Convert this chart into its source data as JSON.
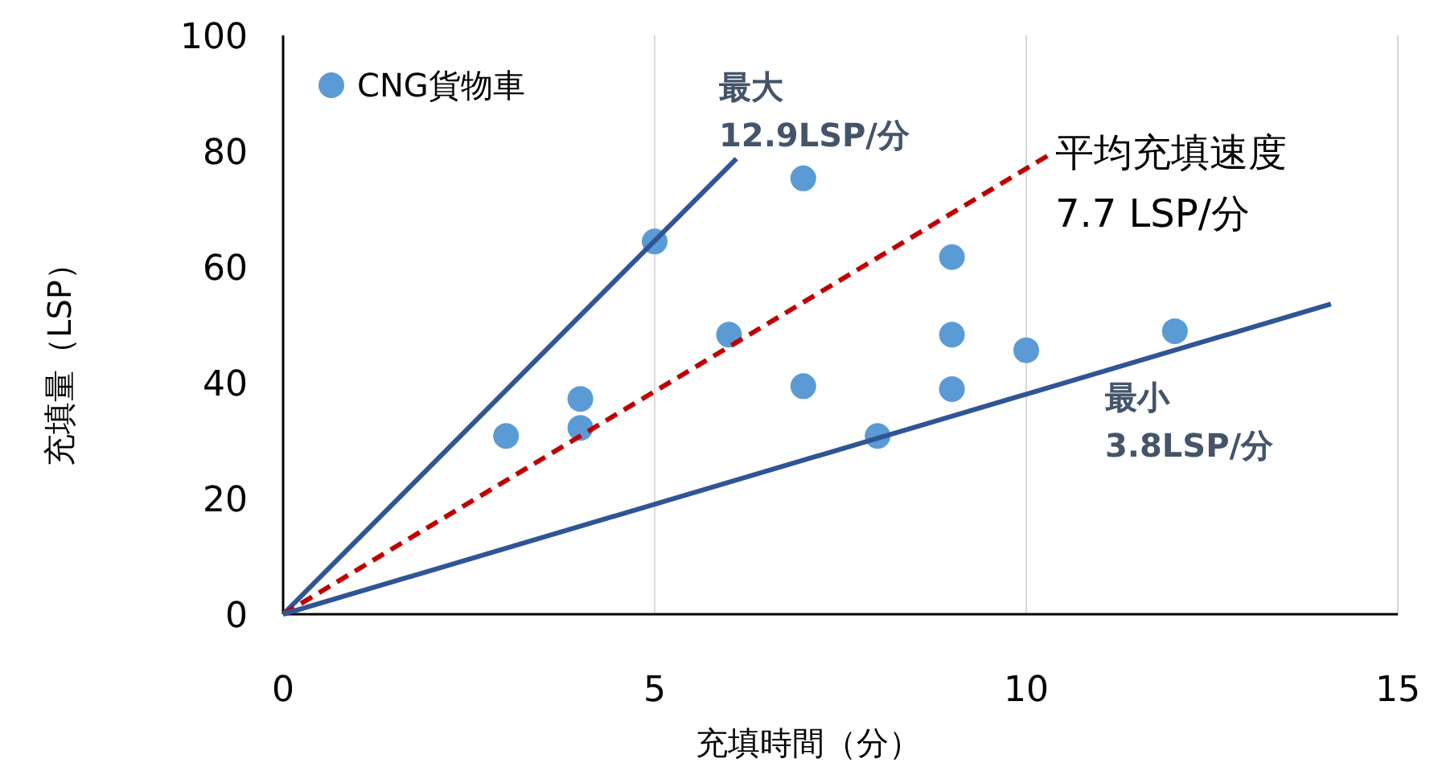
{
  "chart_data": {
    "type": "scatter",
    "xlabel": "充填時間（分）",
    "ylabel": "充填量（LSP）",
    "xlim": [
      0,
      15
    ],
    "ylim": [
      0,
      100
    ],
    "xticks": [
      0,
      5,
      10,
      15
    ],
    "yticks": [
      0,
      20,
      40,
      60,
      80,
      100
    ],
    "grid": "x",
    "legend": "top left",
    "series": [
      {
        "name": "CNG貨物車",
        "marker": "circle",
        "color": "#5b9bd5",
        "x": [
          3,
          4,
          4,
          5,
          6,
          7,
          7,
          8,
          9,
          9,
          9,
          10,
          12
        ],
        "values": [
          30.8,
          37.2,
          32.2,
          64.4,
          48.3,
          75.3,
          39.4,
          30.8,
          61.7,
          48.3,
          38.9,
          45.6,
          48.9
        ]
      },
      {
        "type": "line",
        "color": "#2f5597",
        "line_style": "solid",
        "x": [
          0,
          6.1
        ],
        "values": [
          0,
          78.7
        ]
      },
      {
        "type": "line",
        "color": "#c00000",
        "line_style": "dashed",
        "x": [
          0,
          10.3
        ],
        "values": [
          0,
          79.3
        ]
      },
      {
        "type": "line",
        "color": "#2f5597",
        "line_style": "solid",
        "x": [
          0,
          14.1
        ],
        "values": [
          0,
          53.6
        ]
      }
    ],
    "annotations": [
      "最大\n12.9LSP/分",
      "平均充填速度\n7.7 LSP/分",
      "最小\n3.8LSP/分"
    ]
  }
}
